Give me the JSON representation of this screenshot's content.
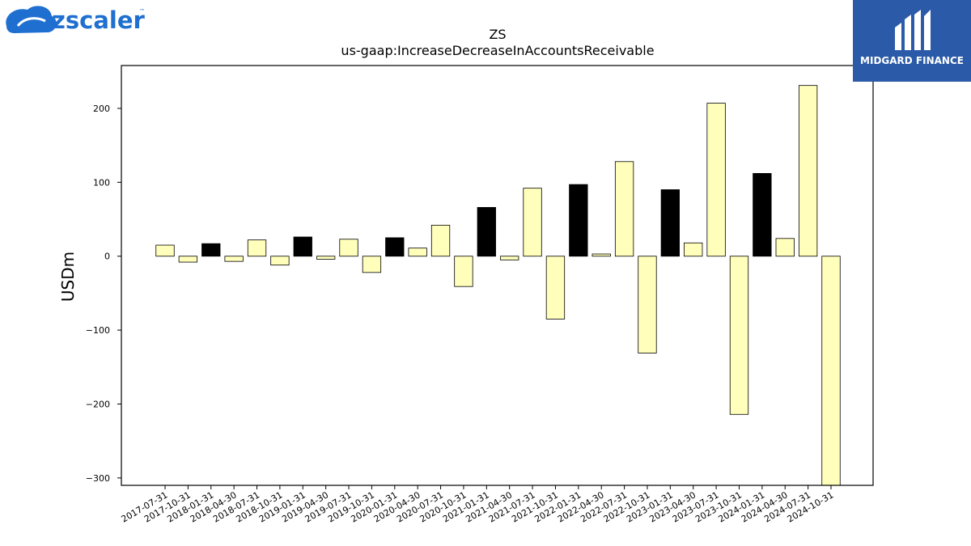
{
  "brand_left": {
    "name": "zscaler",
    "tm": "™",
    "color": "#1f6fd1"
  },
  "brand_right": {
    "name": "MIDGARD FINANCE",
    "bg_color": "#2a5aa8"
  },
  "chart_data": {
    "type": "bar",
    "title": "ZS",
    "subtitle": "us-gaap:IncreaseDecreaseInAccountsReceivable",
    "xlabel": "",
    "ylabel": "USDm",
    "ylim": [
      -310,
      258
    ],
    "yticks": [
      -300,
      -200,
      -100,
      0,
      100,
      200
    ],
    "grid": false,
    "colors": {
      "default": "#ffffbb",
      "highlight": "#000000",
      "edge": "#000000"
    },
    "categories": [
      "2017-07-31",
      "2017-10-31",
      "2018-01-31",
      "2018-04-30",
      "2018-07-31",
      "2018-10-31",
      "2019-01-31",
      "2019-04-30",
      "2019-07-31",
      "2019-10-31",
      "2020-01-31",
      "2020-04-30",
      "2020-07-31",
      "2020-10-31",
      "2021-01-31",
      "2021-04-30",
      "2021-07-31",
      "2021-10-31",
      "2022-01-31",
      "2022-04-30",
      "2022-07-31",
      "2022-10-31",
      "2023-01-31",
      "2023-04-30",
      "2023-07-31",
      "2023-10-31",
      "2024-01-31",
      "2024-04-30",
      "2024-07-31",
      "2024-10-31"
    ],
    "values": [
      15,
      -8,
      17,
      -7,
      22,
      -12,
      26,
      -4,
      23,
      -22,
      25,
      11,
      42,
      -41,
      66,
      -5,
      92,
      -85,
      97,
      3,
      128,
      -131,
      90,
      18,
      207,
      -214,
      112,
      24,
      231,
      -310
    ],
    "highlight": [
      false,
      false,
      true,
      false,
      false,
      false,
      true,
      false,
      false,
      false,
      true,
      false,
      false,
      false,
      true,
      false,
      false,
      false,
      true,
      false,
      false,
      false,
      true,
      false,
      false,
      false,
      true,
      false,
      false,
      false
    ]
  }
}
